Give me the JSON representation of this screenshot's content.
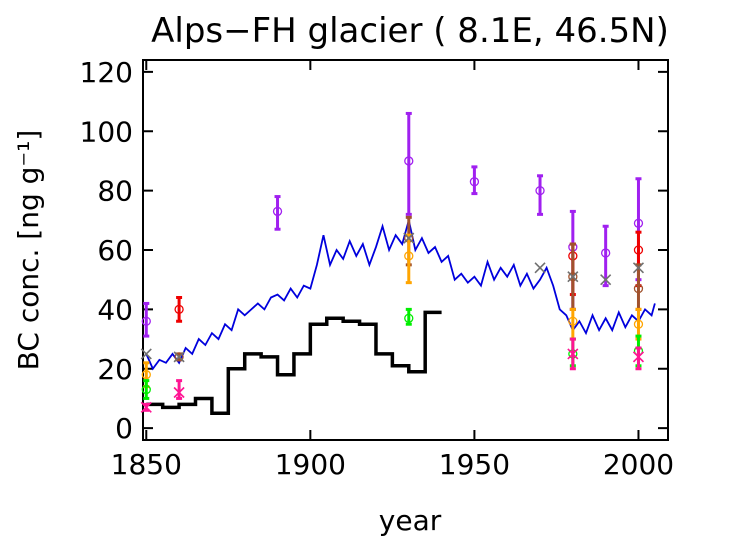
{
  "chart_data": {
    "type": "line",
    "title": "Alps−FH glacier (  8.1E, 46.5N)",
    "x_label": "year",
    "y_label": "BC conc. [ng g⁻¹]",
    "xlim": [
      1849,
      2009
    ],
    "xticks": [
      1850,
      1900,
      1950,
      2000
    ],
    "ylim": [
      -4,
      124
    ],
    "yticks": [
      0,
      20,
      40,
      60,
      80,
      100,
      120
    ],
    "model": {
      "color": "#0000dd",
      "x": [
        1850,
        1852,
        1854,
        1856,
        1858,
        1860,
        1862,
        1864,
        1866,
        1868,
        1870,
        1872,
        1874,
        1876,
        1878,
        1880,
        1882,
        1884,
        1886,
        1888,
        1890,
        1892,
        1894,
        1896,
        1898,
        1900,
        1902,
        1904,
        1906,
        1908,
        1910,
        1912,
        1914,
        1916,
        1918,
        1920,
        1922,
        1924,
        1926,
        1928,
        1930,
        1932,
        1934,
        1936,
        1938,
        1940,
        1942,
        1944,
        1946,
        1948,
        1950,
        1952,
        1954,
        1956,
        1958,
        1960,
        1962,
        1964,
        1966,
        1968,
        1970,
        1972,
        1974,
        1976,
        1978,
        1980,
        1982,
        1984,
        1986,
        1988,
        1990,
        1992,
        1994,
        1996,
        1998,
        2000,
        2002,
        2004,
        2005
      ],
      "values": [
        25,
        20,
        23,
        22,
        25,
        22,
        27,
        25,
        30,
        28,
        32,
        30,
        35,
        33,
        40,
        38,
        40,
        42,
        40,
        44,
        45,
        43,
        47,
        44,
        48,
        47,
        55,
        65,
        55,
        60,
        57,
        63,
        58,
        62,
        55,
        61,
        68,
        60,
        65,
        62,
        70,
        60,
        64,
        59,
        61,
        56,
        58,
        50,
        52,
        49,
        51,
        48,
        56,
        50,
        54,
        51,
        55,
        48,
        52,
        47,
        50,
        54,
        48,
        40,
        38,
        33,
        36,
        32,
        38,
        33,
        37,
        33,
        39,
        34,
        38,
        36,
        40,
        38,
        42
      ]
    },
    "record": {
      "color": "#000000",
      "x": [
        1850,
        1855,
        1860,
        1865,
        1870,
        1875,
        1880,
        1885,
        1890,
        1895,
        1900,
        1905,
        1910,
        1915,
        1920,
        1925,
        1930,
        1935
      ],
      "values": [
        8,
        7,
        8,
        10,
        5,
        20,
        25,
        24,
        18,
        25,
        35,
        37,
        36,
        35,
        25,
        21,
        19,
        39
      ],
      "x_end": 1940
    },
    "observations": [
      {
        "color": "#a020f0",
        "marker": "circle",
        "x": [
          1850,
          1890,
          1930,
          1950,
          1970,
          1980,
          1990,
          2000
        ],
        "values": [
          36,
          73,
          90,
          83,
          80,
          61,
          59,
          69
        ],
        "low": [
          31,
          67,
          72,
          79,
          72,
          40,
          48,
          50
        ],
        "high": [
          42,
          78,
          106,
          88,
          85,
          73,
          68,
          84
        ]
      },
      {
        "color": "#ee0000",
        "marker": "circle",
        "x": [
          1860,
          1980,
          2000
        ],
        "values": [
          40,
          58,
          60
        ],
        "low": [
          36,
          45,
          48
        ],
        "high": [
          44,
          62,
          66
        ]
      },
      {
        "color": "#a0522d",
        "marker": "circle",
        "x": [
          1860,
          1930,
          1980,
          2000
        ],
        "values": [
          24,
          64,
          51,
          47
        ],
        "low": [
          23,
          55,
          40,
          40
        ],
        "high": [
          25,
          71,
          62,
          55
        ]
      },
      {
        "color": "#ffa500",
        "marker": "circle",
        "x": [
          1850,
          1930,
          1980,
          2000
        ],
        "values": [
          18,
          58,
          36,
          35
        ],
        "low": [
          14,
          49,
          30,
          30
        ],
        "high": [
          22,
          65,
          40,
          40
        ]
      },
      {
        "color": "#00ee00",
        "marker": "circle",
        "x": [
          1850,
          1930,
          1980,
          2000
        ],
        "values": [
          13,
          37,
          25,
          26
        ],
        "low": [
          10,
          35,
          21,
          21
        ],
        "high": [
          16,
          40,
          30,
          31
        ]
      },
      {
        "color": "#ff1493",
        "marker": "x",
        "x": [
          1850,
          1860,
          1980,
          2000
        ],
        "values": [
          7,
          12,
          25,
          24
        ],
        "low": [
          6,
          10,
          20,
          20
        ],
        "high": [
          8,
          16,
          30,
          27
        ]
      },
      {
        "color": "#707070",
        "marker": "x",
        "x": [
          1850,
          1860,
          1930,
          1970,
          1980,
          1990,
          2000
        ],
        "values": [
          25,
          24,
          64,
          54,
          51,
          50,
          54
        ]
      }
    ]
  }
}
